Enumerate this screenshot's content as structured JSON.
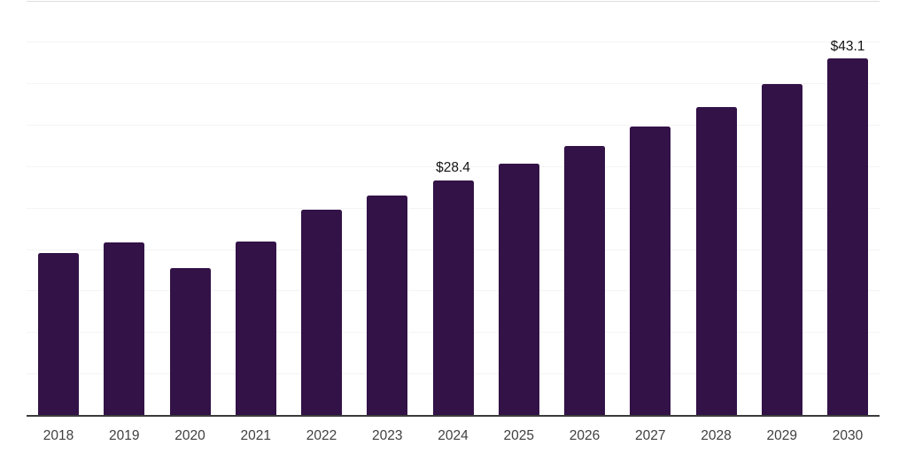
{
  "chart_data": {
    "type": "bar",
    "title": "",
    "xlabel": "",
    "ylabel": "",
    "categories": [
      "2018",
      "2019",
      "2020",
      "2021",
      "2022",
      "2023",
      "2024",
      "2025",
      "2026",
      "2027",
      "2028",
      "2029",
      "2030"
    ],
    "values": [
      19.6,
      20.9,
      17.8,
      21.0,
      24.9,
      26.6,
      28.4,
      30.4,
      32.6,
      34.9,
      37.2,
      40.0,
      43.1
    ],
    "point_labels": {
      "2024": "$28.4",
      "2030": "$43.1"
    },
    "ylim": [
      0,
      50
    ],
    "grid_step": 5,
    "grid": "horizontal",
    "y_axis_labels_visible": false,
    "legend_position": "none",
    "colors": {
      "bar": "#331247",
      "axis_line": "#3b3b3b",
      "grid_line": "#f4f4f4",
      "grid_line_top": "#dedede",
      "tick_label": "#404040",
      "value_label": "#141414"
    }
  }
}
